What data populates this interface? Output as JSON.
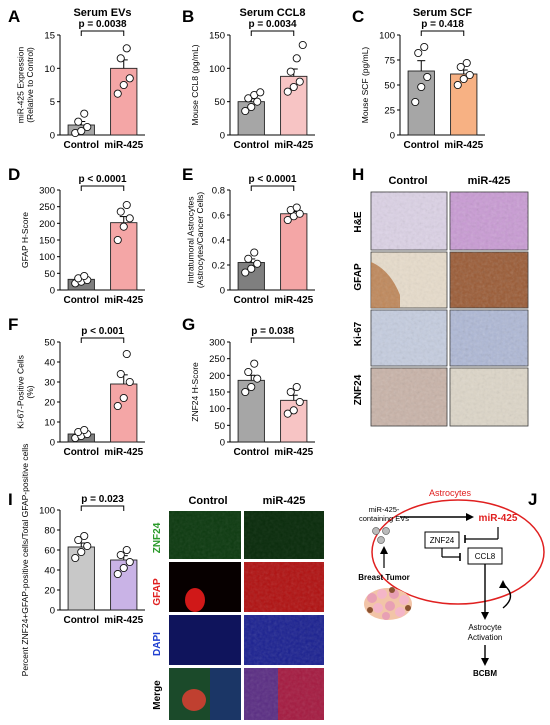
{
  "colors": {
    "control_gray": "#a6a6a6",
    "control_dark": "#7f7f7f",
    "mir_pink": "#f4a6a6",
    "mir_light": "#f7c4c4",
    "scf_orange": "#f7b183",
    "znf_purple": "#c9b3e6",
    "znf_gray": "#c8c8c8",
    "astro_red": "#e02020"
  },
  "chart_data": [
    {
      "panel": "A",
      "type": "bar",
      "title": "Serum EVs",
      "ylabel": "miR-425 Expression (Relative to Control)",
      "categories": [
        "Control",
        "miR-425"
      ],
      "values": [
        1.5,
        10
      ],
      "ylim": [
        0,
        15
      ],
      "yticks": [
        0,
        5,
        10,
        15
      ],
      "points": [
        [
          0.3,
          0.6,
          1.2,
          2.0,
          3.2
        ],
        [
          6.2,
          7.5,
          8.5,
          11.5,
          13.0
        ]
      ],
      "annotation": "p = 0.0038"
    },
    {
      "panel": "B",
      "type": "bar",
      "title": "Serum CCL8",
      "ylabel": "Mouse CCL8 (pg/mL)",
      "categories": [
        "Control",
        "miR-425"
      ],
      "values": [
        50,
        88
      ],
      "ylim": [
        0,
        150
      ],
      "yticks": [
        0,
        50,
        100,
        150
      ],
      "points": [
        [
          36,
          42,
          50,
          55,
          60,
          64
        ],
        [
          65,
          72,
          80,
          95,
          115,
          135
        ]
      ],
      "annotation": "p = 0.0034"
    },
    {
      "panel": "C",
      "type": "bar",
      "title": "Serum SCF",
      "ylabel": "Mouse SCF (pg/mL)",
      "categories": [
        "Control",
        "miR-425"
      ],
      "values": [
        64,
        61
      ],
      "ylim": [
        0,
        100
      ],
      "yticks": [
        0,
        25,
        50,
        75,
        100
      ],
      "points": [
        [
          33,
          48,
          58,
          82,
          88
        ],
        [
          50,
          56,
          60,
          68,
          72
        ]
      ],
      "annotation": "p = 0.418"
    },
    {
      "panel": "D",
      "type": "bar",
      "title": "",
      "ylabel": "GFAP H-Score",
      "categories": [
        "Control",
        "miR-425"
      ],
      "values": [
        32,
        202
      ],
      "ylim": [
        0,
        300
      ],
      "yticks": [
        0,
        50,
        100,
        150,
        200,
        250,
        300
      ],
      "points": [
        [
          20,
          25,
          30,
          35,
          42
        ],
        [
          150,
          190,
          215,
          235,
          255
        ]
      ],
      "annotation": "p < 0.0001"
    },
    {
      "panel": "E",
      "type": "bar",
      "title": "",
      "ylabel": "Intratumoral Astrocytes (Astrocytes/Cancer Cells)",
      "categories": [
        "Control",
        "miR-425"
      ],
      "values": [
        0.22,
        0.61
      ],
      "ylim": [
        0,
        0.8
      ],
      "yticks": [
        0,
        0.2,
        0.4,
        0.6,
        0.8
      ],
      "points": [
        [
          0.14,
          0.17,
          0.21,
          0.25,
          0.3
        ],
        [
          0.56,
          0.59,
          0.61,
          0.64,
          0.66
        ]
      ],
      "annotation": "p < 0.0001"
    },
    {
      "panel": "F",
      "type": "bar",
      "title": "",
      "ylabel": "Ki-67-Positive Cells (%)",
      "categories": [
        "Control",
        "miR-425"
      ],
      "values": [
        4,
        29
      ],
      "ylim": [
        0,
        50
      ],
      "yticks": [
        0,
        10,
        20,
        30,
        40,
        50
      ],
      "points": [
        [
          2,
          3,
          4,
          5,
          6
        ],
        [
          18,
          22,
          30,
          34,
          44
        ]
      ],
      "annotation": "p < 0.001"
    },
    {
      "panel": "G",
      "type": "bar",
      "title": "",
      "ylabel": "ZNF24 H-Score",
      "categories": [
        "Control",
        "miR-425"
      ],
      "values": [
        185,
        125
      ],
      "ylim": [
        0,
        300
      ],
      "yticks": [
        0,
        50,
        100,
        150,
        200,
        250,
        300
      ],
      "points": [
        [
          150,
          165,
          190,
          210,
          235
        ],
        [
          85,
          95,
          120,
          150,
          165
        ]
      ],
      "annotation": "p = 0.038"
    },
    {
      "panel": "I",
      "type": "bar",
      "title": "",
      "ylabel": "Percent ZNF24+GFAP-positive cells/Total GFAP-positive cells",
      "categories": [
        "Control",
        "miR-425"
      ],
      "values": [
        63,
        50
      ],
      "ylim": [
        0,
        100
      ],
      "yticks": [
        0,
        20,
        40,
        60,
        80,
        100
      ],
      "points": [
        [
          52,
          58,
          64,
          70,
          74
        ],
        [
          36,
          42,
          48,
          55,
          60
        ]
      ],
      "annotation": "p = 0.023"
    }
  ],
  "panel_letters": {
    "A": "A",
    "B": "B",
    "C": "C",
    "D": "D",
    "E": "E",
    "F": "F",
    "G": "G",
    "H": "H",
    "I": "I",
    "J": "J"
  },
  "panel_h": {
    "col_control": "Control",
    "col_mir": "miR-425",
    "rows": [
      "H&E",
      "GFAP",
      "Ki-67",
      "ZNF24"
    ]
  },
  "panel_i_images": {
    "col_control": "Control",
    "col_mir": "miR-425",
    "rows": [
      "ZNF24",
      "GFAP",
      "DAPI",
      "Merge"
    ]
  },
  "panel_j": {
    "astrocytes": "Astrocytes",
    "evs": "miR-425-containing EVs",
    "mir": "miR-425",
    "znf24": "ZNF24",
    "ccl8": "CCL8",
    "tumor": "Breast Tumor",
    "activation": "Astrocyte Activation",
    "bcbm": "BCBM"
  }
}
